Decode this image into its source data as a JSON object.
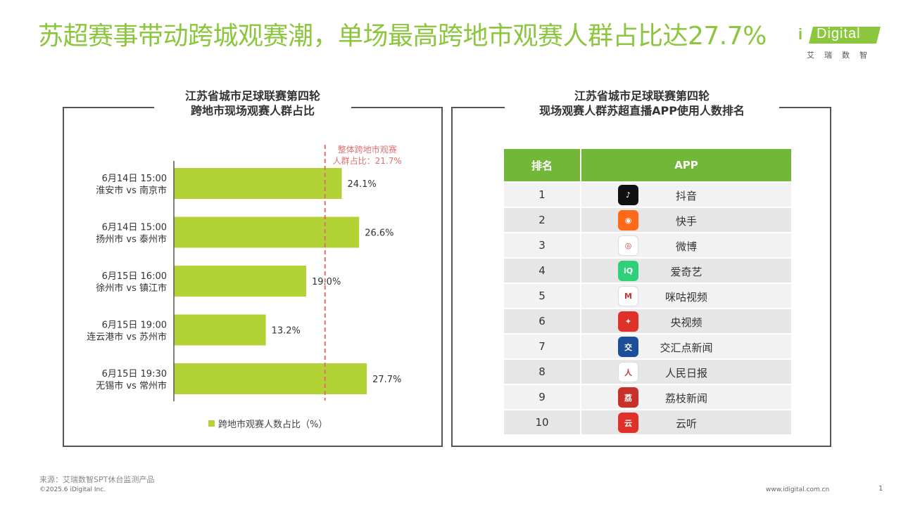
{
  "page_title": "苏超赛事带动跨城观赛潮，单场最高跨地市观赛人群占比达27.7%",
  "logo": {
    "i": "i",
    "text": "Digital",
    "sub": "艾瑞数智"
  },
  "left_panel": {
    "title_line1": "江苏省城市足球联赛第四轮",
    "title_line2": "跨地市现场观赛人群占比"
  },
  "right_panel": {
    "title_line1": "江苏省城市足球联赛第四轮",
    "title_line2": "现场观赛人群苏超直播APP使用人数排名"
  },
  "chart_data": {
    "type": "bar",
    "orientation": "horizontal",
    "categories": [
      {
        "line1": "6月14日 15:00",
        "line2": "淮安市 vs 南京市"
      },
      {
        "line1": "6月14日 15:00",
        "line2": "扬州市 vs 泰州市"
      },
      {
        "line1": "6月15日 16:00",
        "line2": "徐州市 vs 镇江市"
      },
      {
        "line1": "6月15日 19:00",
        "line2": "连云港市 vs 苏州市"
      },
      {
        "line1": "6月15日 19:30",
        "line2": "无锡市 vs 常州市"
      }
    ],
    "values": [
      24.1,
      26.6,
      19.0,
      13.2,
      27.7
    ],
    "value_labels": [
      "24.1%",
      "26.6%",
      "19.0%",
      "13.2%",
      "27.7%"
    ],
    "xlim": [
      0,
      28.5
    ],
    "reference_line": {
      "value": 21.7,
      "label_line1": "整体跨地市观赛",
      "label_line2": "人群占比：21.7%",
      "color": "#e07070"
    },
    "bar_color": "#b2d235",
    "legend": "跨地市观赛人数占比（%）",
    "legend_position": "bottom"
  },
  "app_table": {
    "headers": [
      "排名",
      "APP"
    ],
    "rows": [
      {
        "rank": "1",
        "name": "抖音",
        "icon": "douyin-icon",
        "color": "#111111",
        "glyph": "♪"
      },
      {
        "rank": "2",
        "name": "快手",
        "icon": "kuaishou-icon",
        "color": "#ff6a1a",
        "glyph": "◉"
      },
      {
        "rank": "3",
        "name": "微博",
        "icon": "weibo-icon",
        "color": "#ffffff",
        "glyph": "◎"
      },
      {
        "rank": "4",
        "name": "爱奇艺",
        "icon": "iqiyi-icon",
        "color": "#2fd07a",
        "glyph": "iQ"
      },
      {
        "rank": "5",
        "name": "咪咕视频",
        "icon": "migu-icon",
        "color": "#ffffff",
        "glyph": "M"
      },
      {
        "rank": "6",
        "name": "央视频",
        "icon": "yangshipin-icon",
        "color": "#e0302a",
        "glyph": "✦"
      },
      {
        "rank": "7",
        "name": "交汇点新闻",
        "icon": "jiaohuidian-icon",
        "color": "#1b4f9c",
        "glyph": "交"
      },
      {
        "rank": "8",
        "name": "人民日报",
        "icon": "renmin-icon",
        "color": "#ffffff",
        "glyph": "人"
      },
      {
        "rank": "9",
        "name": "荔枝新闻",
        "icon": "lizhi-icon",
        "color": "#c8302a",
        "glyph": "荔"
      },
      {
        "rank": "10",
        "name": "云听",
        "icon": "yunting-icon",
        "color": "#e0302a",
        "glyph": "云"
      }
    ]
  },
  "footer": {
    "source": "来源：艾瑞数智SPT休台监测产品",
    "copyright": "©2025.6 iDigital Inc.",
    "website": "www.idigital.com.cn",
    "page": "1"
  }
}
